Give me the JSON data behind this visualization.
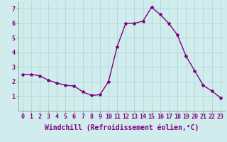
{
  "x": [
    0,
    1,
    2,
    3,
    4,
    5,
    6,
    7,
    8,
    9,
    10,
    11,
    12,
    13,
    14,
    15,
    16,
    17,
    18,
    19,
    20,
    21,
    22,
    23
  ],
  "y": [
    2.5,
    2.5,
    2.4,
    2.1,
    1.9,
    1.75,
    1.7,
    1.3,
    1.05,
    1.1,
    2.0,
    4.4,
    6.0,
    6.0,
    6.15,
    7.1,
    6.6,
    6.0,
    5.2,
    3.75,
    2.75,
    1.75,
    1.35,
    0.9
  ],
  "line_color": "#800080",
  "marker": "*",
  "marker_size": 3,
  "background_color": "#d0ecec",
  "grid_color": "#a8d4d4",
  "xlabel": "Windchill (Refroidissement éolien,°C)",
  "xlabel_fontsize": 7,
  "tick_fontsize": 6,
  "label_color": "#800080",
  "ylim": [
    0,
    7.5
  ],
  "xlim": [
    -0.5,
    23.5
  ],
  "yticks": [
    1,
    2,
    3,
    4,
    5,
    6,
    7
  ],
  "xticks": [
    0,
    1,
    2,
    3,
    4,
    5,
    6,
    7,
    8,
    9,
    10,
    11,
    12,
    13,
    14,
    15,
    16,
    17,
    18,
    19,
    20,
    21,
    22,
    23
  ],
  "linewidth": 1.0
}
